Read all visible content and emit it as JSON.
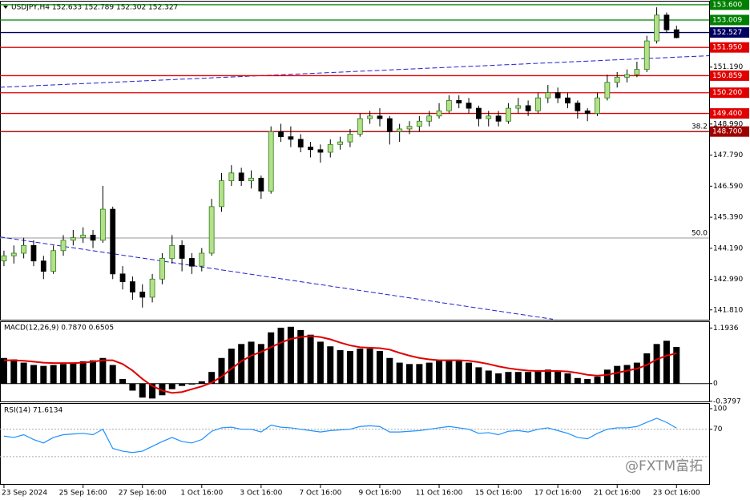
{
  "chart_data": [
    {
      "type": "candlestick",
      "title": "USDJPY,H4  152.633 152.789 152.302 152.327",
      "xlim": [
        -0.4,
        71.3
      ],
      "xticks": [
        {
          "value": 0,
          "label": "23 Sep 2024"
        },
        {
          "value": 8,
          "label": "25 Sep 16:00"
        },
        {
          "value": 14,
          "label": "27 Sep 16:00"
        },
        {
          "value": 20,
          "label": "1 Oct 16:00"
        },
        {
          "value": 26,
          "label": "3 Oct 16:00"
        },
        {
          "value": 32,
          "label": "7 Oct 16:00"
        },
        {
          "value": 38,
          "label": "9 Oct 16:00"
        },
        {
          "value": 44,
          "label": "11 Oct 16:00"
        },
        {
          "value": 50,
          "label": "15 Oct 16:00"
        },
        {
          "value": 56,
          "label": "17 Oct 16:00"
        },
        {
          "value": 62,
          "label": "21 Oct 16:00"
        },
        {
          "value": 68,
          "label": "23 Oct 16:00"
        }
      ],
      "open": [
        143.7,
        143.9,
        144.0,
        144.3,
        143.7,
        143.3,
        144.1,
        144.5,
        144.6,
        144.7,
        144.5,
        145.7,
        143.2,
        142.9,
        142.5,
        142.3,
        143.0,
        143.8,
        144.3,
        143.8,
        143.5,
        144.0,
        145.8,
        146.8,
        147.1,
        146.8,
        146.9,
        146.4,
        148.7,
        148.5,
        148.4,
        148.1,
        148.0,
        147.9,
        148.2,
        148.3,
        148.6,
        149.2,
        149.3,
        149.2,
        148.7,
        148.8,
        148.9,
        149.1,
        149.3,
        149.5,
        149.9,
        149.8,
        149.6,
        149.2,
        149.3,
        149.1,
        149.6,
        149.7,
        149.5,
        150.0,
        150.2,
        150.0,
        149.8,
        149.5,
        149.4,
        150.0,
        150.6,
        150.8,
        150.9,
        151.1,
        152.2,
        153.2,
        152.633
      ],
      "high": [
        144.1,
        144.3,
        144.6,
        144.5,
        143.9,
        144.3,
        144.7,
        144.9,
        145.0,
        144.9,
        146.6,
        145.8,
        143.5,
        143.1,
        142.8,
        143.2,
        144.0,
        144.7,
        144.5,
        144.0,
        144.2,
        146.1,
        147.1,
        147.4,
        147.3,
        147.2,
        147.0,
        148.9,
        149.0,
        148.9,
        148.6,
        148.3,
        148.2,
        148.4,
        148.5,
        148.8,
        149.4,
        149.5,
        149.6,
        149.3,
        149.0,
        149.1,
        149.3,
        149.5,
        149.8,
        150.1,
        150.1,
        150.0,
        149.7,
        149.5,
        149.5,
        149.8,
        150.0,
        149.9,
        150.2,
        150.5,
        150.4,
        150.2,
        149.9,
        149.6,
        150.2,
        150.9,
        151.0,
        151.1,
        151.4,
        152.4,
        153.5,
        153.3,
        152.789
      ],
      "low": [
        143.5,
        143.6,
        143.8,
        143.5,
        143.0,
        143.2,
        143.9,
        144.3,
        144.4,
        144.2,
        144.4,
        143.0,
        142.6,
        142.2,
        141.9,
        142.1,
        142.8,
        143.6,
        143.3,
        143.2,
        143.3,
        143.9,
        145.6,
        146.6,
        146.6,
        146.5,
        146.1,
        146.3,
        148.3,
        148.1,
        147.9,
        147.7,
        147.5,
        147.7,
        148.0,
        148.1,
        148.5,
        149.0,
        148.9,
        148.2,
        148.3,
        148.6,
        148.7,
        148.9,
        149.2,
        149.4,
        149.6,
        149.4,
        148.9,
        148.9,
        148.9,
        149.0,
        149.4,
        149.3,
        149.4,
        149.8,
        149.8,
        149.6,
        149.2,
        149.1,
        149.3,
        149.9,
        150.4,
        150.6,
        150.8,
        151.0,
        152.1,
        152.5,
        152.302
      ],
      "close": [
        143.9,
        144.0,
        144.3,
        143.7,
        143.3,
        144.1,
        144.5,
        144.6,
        144.7,
        144.5,
        145.7,
        143.2,
        142.9,
        142.5,
        142.3,
        143.0,
        143.8,
        144.3,
        143.8,
        143.5,
        144.0,
        145.8,
        146.8,
        147.1,
        146.8,
        146.9,
        146.4,
        148.7,
        148.5,
        148.4,
        148.1,
        148.0,
        147.9,
        148.2,
        148.3,
        148.6,
        149.2,
        149.3,
        149.2,
        148.7,
        148.8,
        148.9,
        149.1,
        149.3,
        149.5,
        149.9,
        149.8,
        149.6,
        149.2,
        149.3,
        149.1,
        149.6,
        149.7,
        149.5,
        150.0,
        150.2,
        150.0,
        149.8,
        149.5,
        149.4,
        150.0,
        150.6,
        150.8,
        150.9,
        151.1,
        152.2,
        153.2,
        152.63,
        152.327
      ],
      "up_color": "#b5e08a",
      "down_color": "#000000",
      "ylim": [
        141.4,
        153.72
      ],
      "yticks": [
        {
          "value": 151.19,
          "label": "151.190"
        },
        {
          "value": 148.99,
          "label": "148.990"
        },
        {
          "value": 147.79,
          "label": "147.790"
        },
        {
          "value": 146.59,
          "label": "146.590"
        },
        {
          "value": 145.39,
          "label": "145.390"
        },
        {
          "value": 144.19,
          "label": "144.190"
        },
        {
          "value": 142.99,
          "label": "142.990"
        },
        {
          "value": 141.81,
          "label": "141.810"
        }
      ],
      "levels": [
        {
          "value": 153.6,
          "label": "153.600",
          "color": "#008000"
        },
        {
          "value": 153.009,
          "label": "153.009",
          "color": "#008000"
        },
        {
          "value": 152.527,
          "label": "152.527",
          "color": "#000060"
        },
        {
          "value": 151.95,
          "label": "151.950",
          "color": "#e00000"
        },
        {
          "value": 150.859,
          "label": "150.859",
          "color": "#e00000"
        },
        {
          "value": 150.2,
          "label": "150.200",
          "color": "#e00000"
        },
        {
          "value": 149.4,
          "label": "149.400",
          "color": "#e00000"
        },
        {
          "value": 148.7,
          "label": "148.700",
          "color": "#a00000"
        }
      ],
      "fib_levels": [
        {
          "value": 148.7,
          "label": "38.2"
        },
        {
          "value": 144.59,
          "label": "50.0"
        }
      ],
      "trendlines": [
        {
          "x": [
            -0.4,
            71.3
          ],
          "y": [
            150.41,
            151.63
          ],
          "color": "#2020d0"
        },
        {
          "x": [
            -0.4,
            55.5
          ],
          "y": [
            144.63,
            141.45
          ],
          "color": "#2020d0"
        }
      ],
      "watermark": "@FXTM富拓"
    },
    {
      "type": "macd",
      "title": "MACD(12,26,9) 0.7870 0.6505",
      "ylim": [
        -0.4,
        1.32
      ],
      "yticks": [
        1.1936,
        0,
        -0.3797
      ],
      "series": [
        {
          "name": "MACD",
          "color": "#000000",
          "values": [
            0.55,
            0.52,
            0.45,
            0.4,
            0.38,
            0.4,
            0.42,
            0.45,
            0.48,
            0.5,
            0.55,
            0.4,
            0.1,
            -0.15,
            -0.3,
            -0.32,
            -0.25,
            -0.12,
            -0.05,
            -0.02,
            0.05,
            0.25,
            0.55,
            0.75,
            0.85,
            0.9,
            0.85,
            1.1,
            1.2,
            1.22,
            1.15,
            1.05,
            0.9,
            0.8,
            0.72,
            0.7,
            0.75,
            0.75,
            0.7,
            0.55,
            0.45,
            0.42,
            0.42,
            0.45,
            0.5,
            0.5,
            0.5,
            0.45,
            0.35,
            0.28,
            0.22,
            0.25,
            0.25,
            0.25,
            0.28,
            0.3,
            0.28,
            0.22,
            0.12,
            0.1,
            0.15,
            0.3,
            0.38,
            0.4,
            0.45,
            0.65,
            0.85,
            0.92,
            0.787
          ]
        },
        {
          "name": "Signal",
          "color": "#e00000",
          "values": [
            0.5,
            0.5,
            0.49,
            0.47,
            0.45,
            0.44,
            0.44,
            0.44,
            0.45,
            0.47,
            0.5,
            0.5,
            0.42,
            0.28,
            0.1,
            -0.05,
            -0.15,
            -0.2,
            -0.18,
            -0.12,
            -0.06,
            0.02,
            0.15,
            0.32,
            0.48,
            0.6,
            0.68,
            0.78,
            0.88,
            0.96,
            1.0,
            1.02,
            1.0,
            0.95,
            0.88,
            0.82,
            0.78,
            0.77,
            0.76,
            0.73,
            0.66,
            0.6,
            0.55,
            0.52,
            0.5,
            0.5,
            0.5,
            0.49,
            0.46,
            0.42,
            0.37,
            0.33,
            0.3,
            0.28,
            0.27,
            0.27,
            0.27,
            0.26,
            0.23,
            0.19,
            0.17,
            0.19,
            0.23,
            0.28,
            0.32,
            0.4,
            0.52,
            0.6,
            0.6505
          ]
        }
      ]
    },
    {
      "type": "line",
      "title": "RSI(14) 71.6134",
      "ylim": [
        -11,
        107
      ],
      "yticks": [
        100,
        70
      ],
      "levels": [
        70,
        30
      ],
      "color": "#1e90ff",
      "values": [
        60,
        58,
        62,
        55,
        50,
        58,
        62,
        63,
        64,
        62,
        70,
        42,
        38,
        36,
        38,
        45,
        52,
        58,
        52,
        50,
        55,
        67,
        72,
        73,
        70,
        70,
        66,
        76,
        73,
        72,
        70,
        68,
        66,
        68,
        69,
        70,
        74,
        75,
        74,
        66,
        66,
        67,
        68,
        70,
        72,
        74,
        72,
        70,
        64,
        65,
        62,
        67,
        68,
        66,
        70,
        72,
        68,
        64,
        58,
        56,
        64,
        70,
        72,
        72,
        74,
        80,
        86,
        80,
        71.6134
      ]
    }
  ]
}
